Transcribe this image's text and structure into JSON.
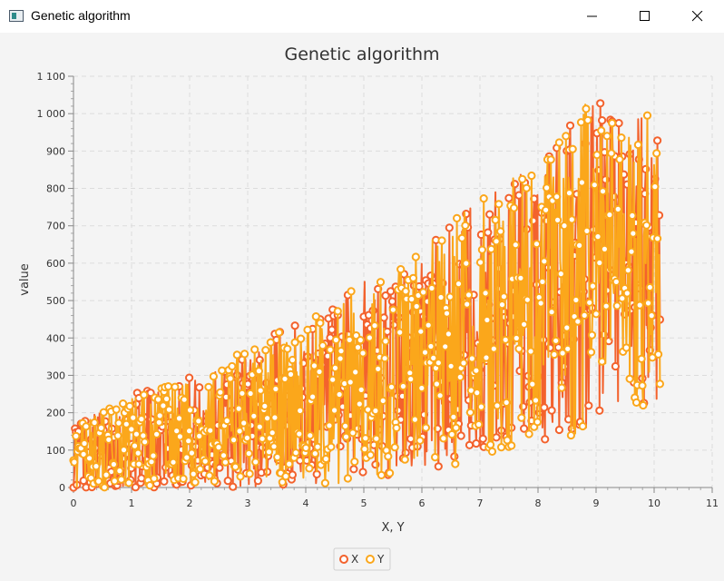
{
  "window": {
    "title": "Genetic algorithm"
  },
  "colors": {
    "series_x": "#f3622d",
    "series_y": "#fba71b"
  },
  "chart_data": {
    "type": "line",
    "title": "Genetic algorithm",
    "xlabel": "X, Y",
    "ylabel": "value",
    "xlim": [
      0,
      11
    ],
    "ylim": [
      0,
      1100
    ],
    "xticks": [
      0,
      1,
      2,
      3,
      4,
      5,
      6,
      7,
      8,
      9,
      10,
      11
    ],
    "yticks": [
      0,
      100,
      200,
      300,
      400,
      500,
      600,
      700,
      800,
      900,
      1000,
      1100
    ],
    "ytick_labels": [
      "0",
      "100",
      "200",
      "300",
      "400",
      "500",
      "600",
      "700",
      "800",
      "900",
      "1 000",
      "1 100"
    ],
    "grid": true,
    "legend_position": "bottom-center",
    "series": [
      {
        "name": "X",
        "color": "#f3622d"
      },
      {
        "name": "Y",
        "color": "#fba71b"
      }
    ],
    "x": [
      0.0,
      0.5,
      1.0,
      1.5,
      2.0,
      2.5,
      3.0,
      3.5,
      4.0,
      4.5,
      5.0,
      5.5,
      6.0,
      6.5,
      7.0,
      7.5,
      8.0,
      8.5,
      9.0,
      9.5,
      10.0
    ],
    "envelope_max": [
      190,
      210,
      250,
      270,
      300,
      320,
      380,
      420,
      450,
      480,
      560,
      590,
      640,
      720,
      770,
      850,
      870,
      990,
      1045,
      1000,
      1045
    ],
    "envelope_min": [
      0,
      0,
      0,
      0,
      0,
      0,
      0,
      5,
      10,
      10,
      20,
      30,
      40,
      50,
      70,
      90,
      110,
      130,
      170,
      200,
      220
    ],
    "points_per_series": 700
  }
}
